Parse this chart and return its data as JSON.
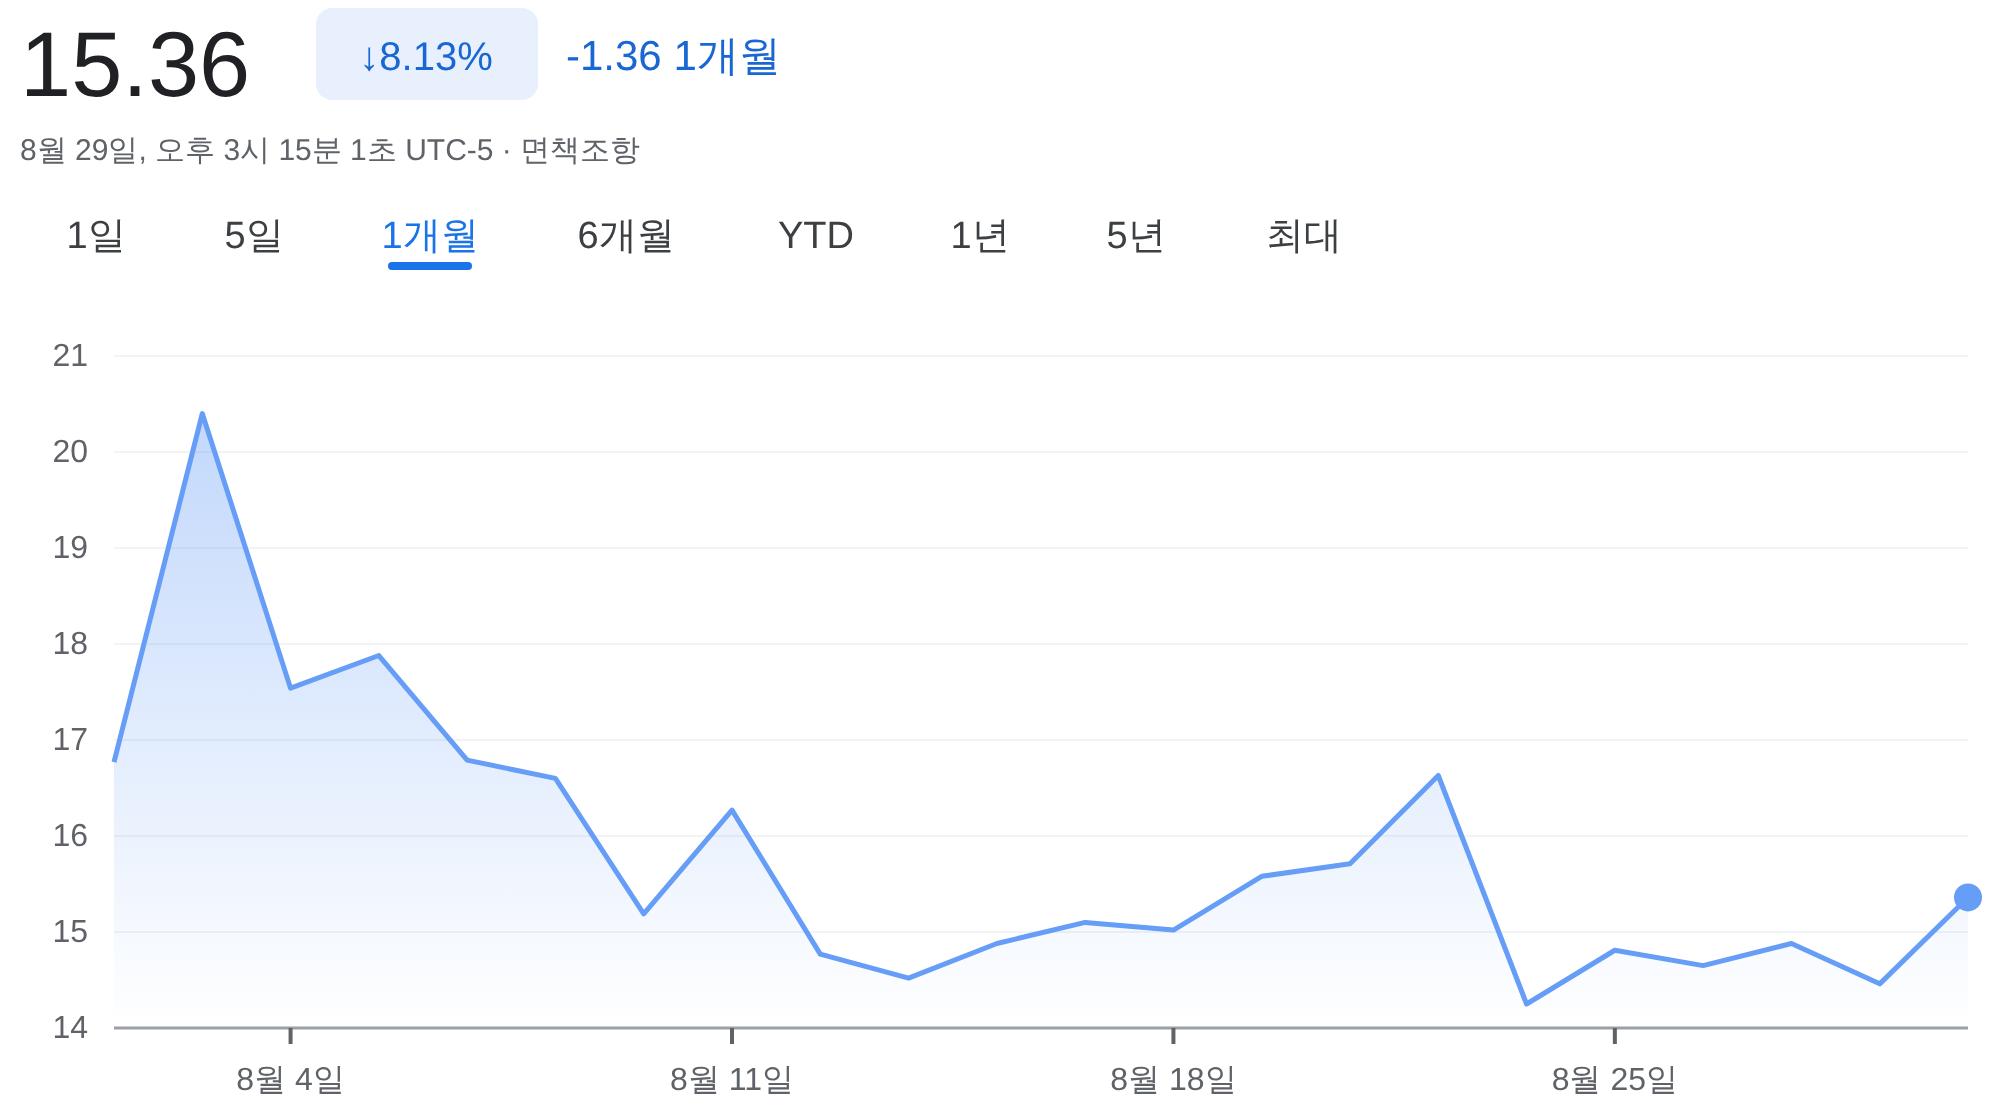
{
  "chart_data": {
    "type": "area",
    "title": "15.36",
    "subtitle": "8월 29일, 오후 3시 15분 1초 UTC-5 · 면책조항",
    "annotations": [
      "↓8.13%",
      "-1.36 1개월",
      "1일",
      "5일",
      "1개월",
      "6개월",
      "YTD",
      "1년",
      "5년",
      "최대"
    ],
    "categories": [
      null,
      null,
      "8월 4일",
      null,
      null,
      null,
      null,
      "8월 11일",
      null,
      null,
      null,
      null,
      "8월 18일",
      null,
      null,
      null,
      null,
      "8월 25일",
      null,
      null,
      null,
      null
    ],
    "series": [
      {
        "color": "#669df6",
        "values": [
          16.77,
          20.4,
          17.54,
          17.88,
          16.79,
          16.6,
          15.19,
          16.27,
          14.77,
          14.52,
          14.88,
          15.1,
          15.02,
          15.58,
          15.71,
          16.63,
          14.25,
          14.81,
          14.65,
          14.88,
          14.46,
          15.36
        ]
      }
    ],
    "ylim": [
      14,
      21
    ],
    "yticks": [
      14,
      15,
      16,
      17,
      18,
      19,
      20,
      21
    ],
    "grid": "y"
  }
}
